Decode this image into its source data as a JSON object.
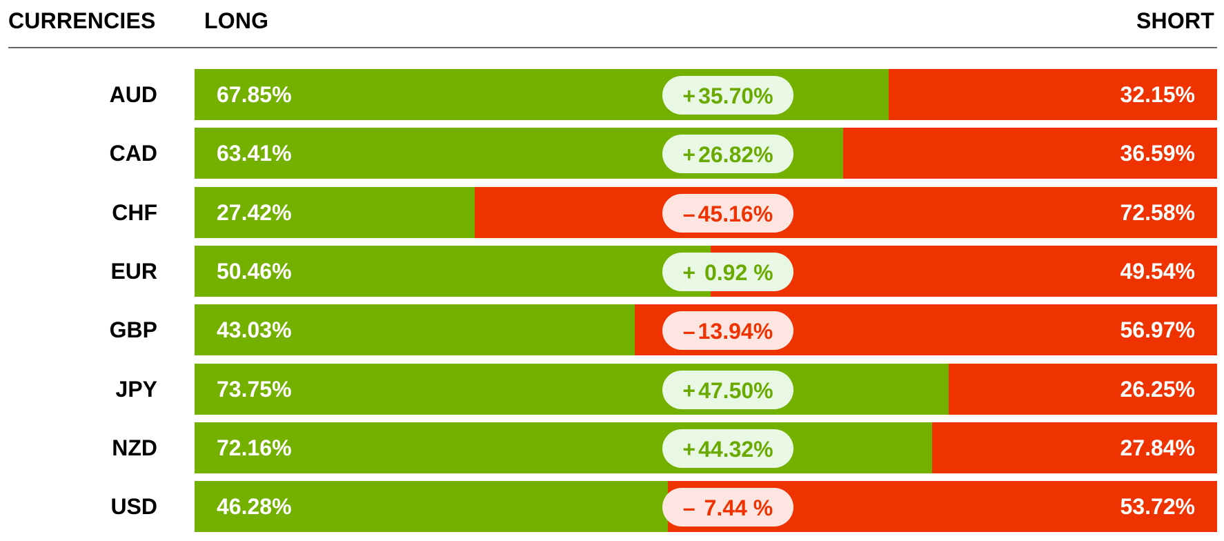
{
  "header": {
    "currencies_label": "CURRENCIES",
    "long_label": "LONG",
    "short_label": "SHORT"
  },
  "colors": {
    "long": "#74b000",
    "short": "#ef3300",
    "pill_pos_bg": "#e8f8e4",
    "pill_neg_bg": "#fde6e2",
    "pill_pos_text": "#6aaa00",
    "pill_neg_text": "#ee3300"
  },
  "chart_data": {
    "type": "bar",
    "categories": [
      "AUD",
      "CAD",
      "CHF",
      "EUR",
      "GBP",
      "JPY",
      "NZD",
      "USD"
    ],
    "series": [
      {
        "name": "LONG",
        "values": [
          67.85,
          63.41,
          27.42,
          50.46,
          43.03,
          73.75,
          72.16,
          46.28
        ]
      },
      {
        "name": "SHORT",
        "values": [
          32.15,
          36.59,
          72.58,
          49.54,
          56.97,
          26.25,
          27.84,
          53.72
        ]
      }
    ],
    "rows": [
      {
        "currency": "AUD",
        "long": 67.85,
        "short": 32.15,
        "long_label": "67.85%",
        "short_label": "32.15%",
        "net_sign": "+",
        "net_value": "35.70%",
        "positive": true
      },
      {
        "currency": "CAD",
        "long": 63.41,
        "short": 36.59,
        "long_label": "63.41%",
        "short_label": "36.59%",
        "net_sign": "+",
        "net_value": "26.82%",
        "positive": true
      },
      {
        "currency": "CHF",
        "long": 27.42,
        "short": 72.58,
        "long_label": "27.42%",
        "short_label": "72.58%",
        "net_sign": "–",
        "net_value": "45.16%",
        "positive": false
      },
      {
        "currency": "EUR",
        "long": 50.46,
        "short": 49.54,
        "long_label": "50.46%",
        "short_label": "49.54%",
        "net_sign": "+",
        "net_value": " 0.92 %",
        "positive": true
      },
      {
        "currency": "GBP",
        "long": 43.03,
        "short": 56.97,
        "long_label": "43.03%",
        "short_label": "56.97%",
        "net_sign": "–",
        "net_value": "13.94%",
        "positive": false
      },
      {
        "currency": "JPY",
        "long": 73.75,
        "short": 26.25,
        "long_label": "73.75%",
        "short_label": "26.25%",
        "net_sign": "+",
        "net_value": "47.50%",
        "positive": true
      },
      {
        "currency": "NZD",
        "long": 72.16,
        "short": 27.84,
        "long_label": "72.16%",
        "short_label": "27.84%",
        "net_sign": "+",
        "net_value": "44.32%",
        "positive": true
      },
      {
        "currency": "USD",
        "long": 46.28,
        "short": 53.72,
        "long_label": "46.28%",
        "short_label": "53.72%",
        "net_sign": "–",
        "net_value": " 7.44 %",
        "positive": false
      }
    ]
  }
}
